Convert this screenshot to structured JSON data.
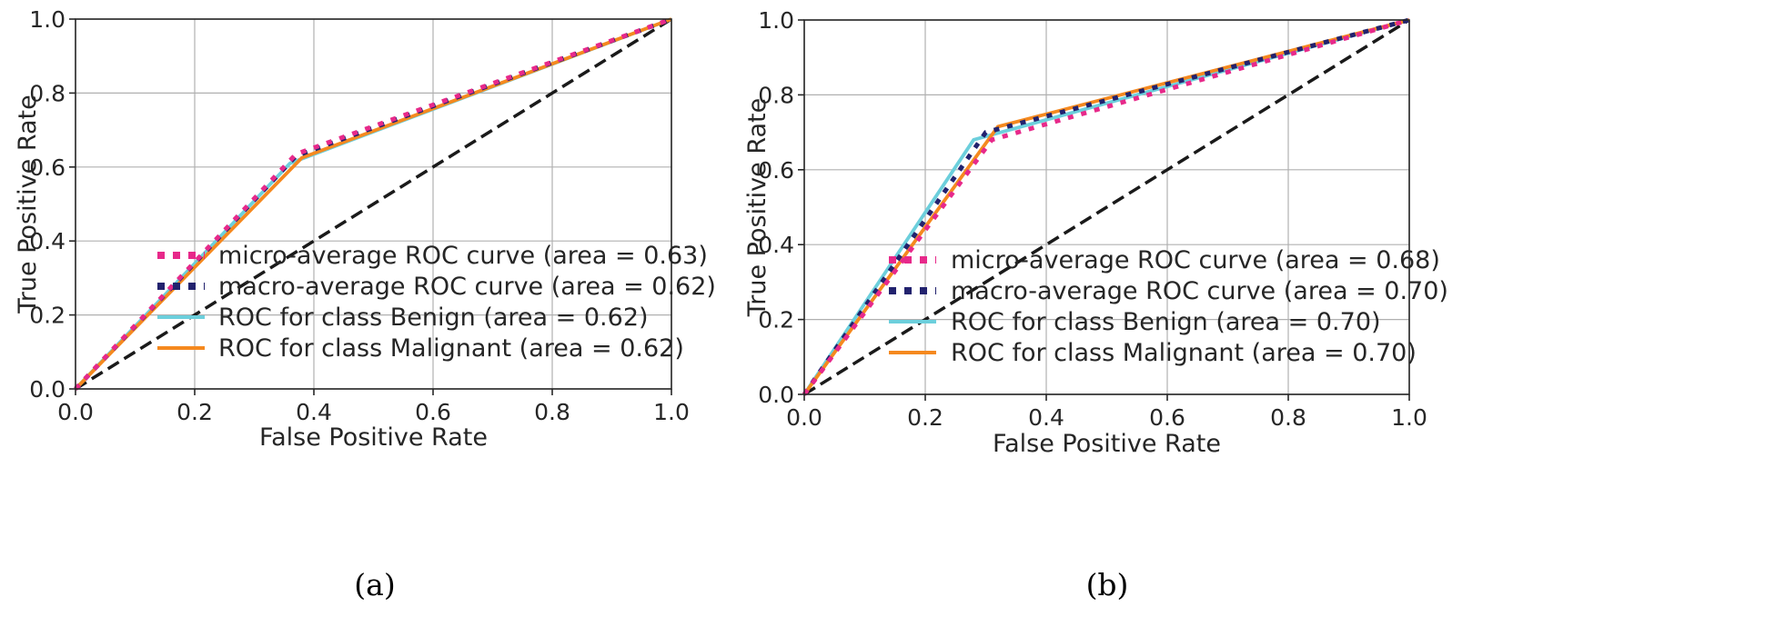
{
  "chart_data": [
    {
      "id": "a",
      "type": "line",
      "caption": "(a)",
      "xlabel": "False Positive Rate",
      "ylabel": "True Positive Rate",
      "xlim": [
        0.0,
        1.0
      ],
      "ylim": [
        0.0,
        1.0
      ],
      "xticks": [
        "0.0",
        "0.2",
        "0.4",
        "0.6",
        "0.8",
        "1.0"
      ],
      "yticks": [
        "0.0",
        "0.2",
        "0.4",
        "0.6",
        "0.8",
        "1.0"
      ],
      "grid": true,
      "legend_position": "lower-right",
      "series": [
        {
          "key": "micro",
          "name": "micro-average ROC curve (area = 0.63)",
          "color": "#e7298a",
          "style": "dotted",
          "x": [
            0.0,
            0.37,
            1.0
          ],
          "y": [
            0.0,
            0.635,
            1.0
          ]
        },
        {
          "key": "macro",
          "name": "macro-average ROC curve (area = 0.62)",
          "color": "#22226e",
          "style": "dotted",
          "x": [
            0.0,
            0.37,
            1.0
          ],
          "y": [
            0.0,
            0.63,
            1.0
          ]
        },
        {
          "key": "benign",
          "name": "ROC for class Benign (area = 0.62)",
          "color": "#6ccfdc",
          "style": "solid",
          "x": [
            0.0,
            0.36,
            1.0
          ],
          "y": [
            0.0,
            0.61,
            1.0
          ]
        },
        {
          "key": "malignant",
          "name": "ROC for class Malignant (area = 0.62)",
          "color": "#f5891f",
          "style": "solid",
          "x": [
            0.0,
            0.38,
            1.0
          ],
          "y": [
            0.0,
            0.625,
            1.0
          ]
        },
        {
          "key": "chance",
          "name": "",
          "color": "#1a1a1a",
          "style": "dashed",
          "x": [
            0.0,
            1.0
          ],
          "y": [
            0.0,
            1.0
          ]
        }
      ]
    },
    {
      "id": "b",
      "type": "line",
      "caption": "(b)",
      "xlabel": "False Positive Rate",
      "ylabel": "True Positive Rate",
      "xlim": [
        0.0,
        1.0
      ],
      "ylim": [
        0.0,
        1.0
      ],
      "xticks": [
        "0.0",
        "0.2",
        "0.4",
        "0.6",
        "0.8",
        "1.0"
      ],
      "yticks": [
        "0.0",
        "0.2",
        "0.4",
        "0.6",
        "0.8",
        "1.0"
      ],
      "grid": true,
      "legend_position": "lower-right",
      "series": [
        {
          "key": "micro",
          "name": "micro-average ROC curve (area = 0.68)",
          "color": "#e7298a",
          "style": "dotted",
          "x": [
            0.0,
            0.31,
            1.0
          ],
          "y": [
            0.0,
            0.68,
            1.0
          ]
        },
        {
          "key": "macro",
          "name": "macro-average ROC curve (area = 0.70)",
          "color": "#22226e",
          "style": "dotted",
          "x": [
            0.0,
            0.3,
            1.0
          ],
          "y": [
            0.0,
            0.7,
            1.0
          ]
        },
        {
          "key": "benign",
          "name": "ROC for class Benign (area = 0.70)",
          "color": "#6ccfdc",
          "style": "solid",
          "x": [
            0.0,
            0.28,
            1.0
          ],
          "y": [
            0.0,
            0.68,
            1.0
          ]
        },
        {
          "key": "malignant",
          "name": "ROC for class Malignant (area = 0.70)",
          "color": "#f5891f",
          "style": "solid",
          "x": [
            0.0,
            0.32,
            1.0
          ],
          "y": [
            0.0,
            0.715,
            1.0
          ]
        },
        {
          "key": "chance",
          "name": "",
          "color": "#1a1a1a",
          "style": "dashed",
          "x": [
            0.0,
            1.0
          ],
          "y": [
            0.0,
            1.0
          ]
        }
      ]
    }
  ]
}
